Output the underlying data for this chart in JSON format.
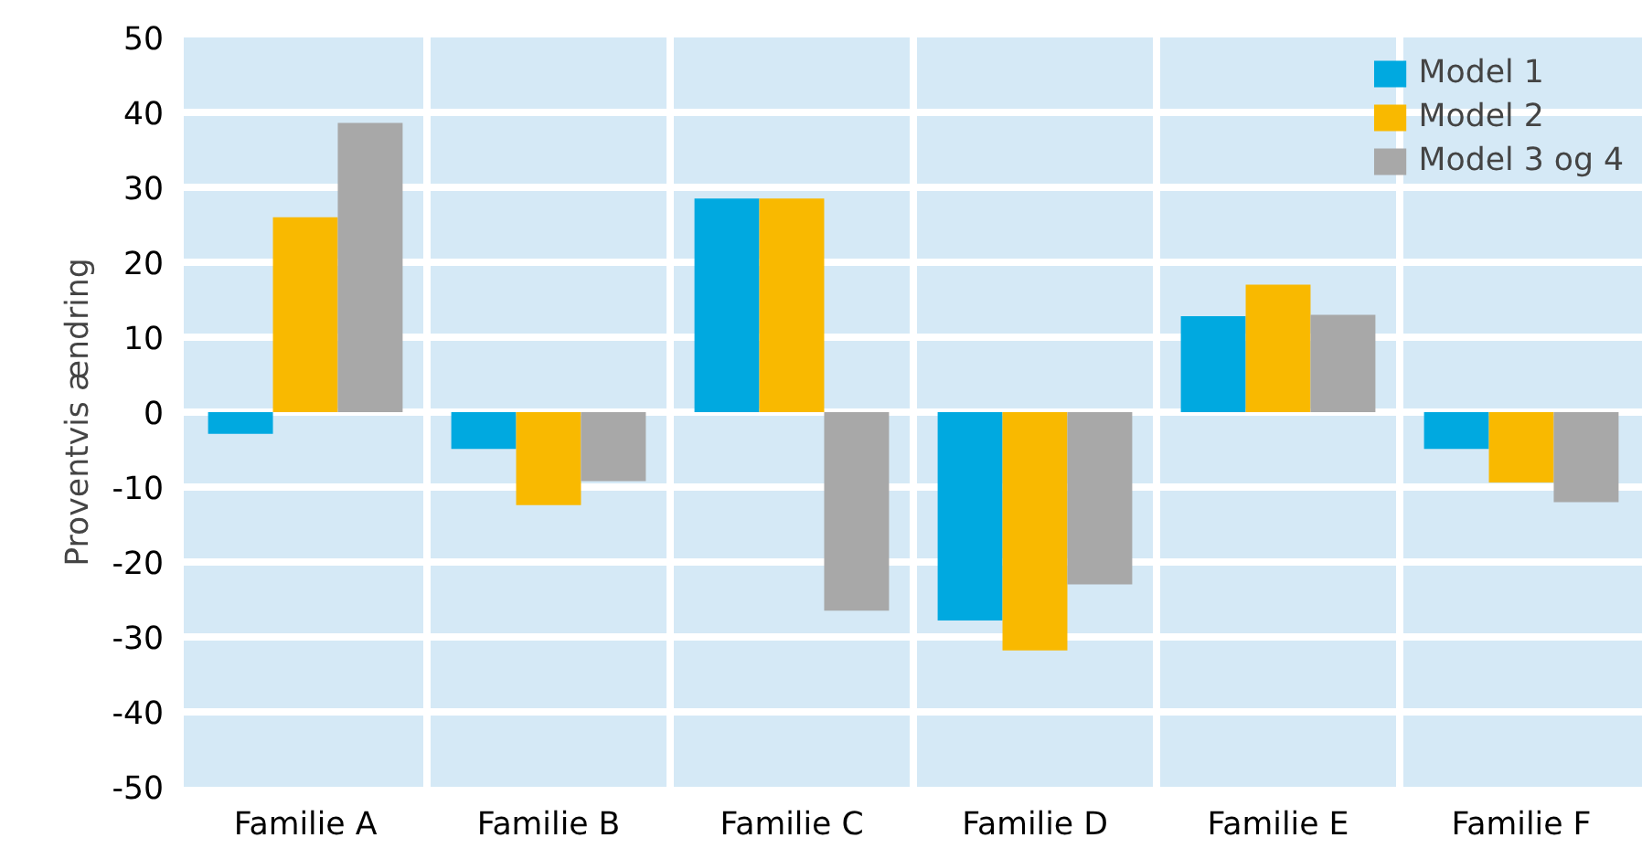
{
  "chart_data": {
    "type": "bar",
    "ylabel": "Proventvis ændring",
    "categories": [
      "Familie A",
      "Familie B",
      "Familie C",
      "Familie D",
      "Familie E",
      "Familie F"
    ],
    "series": [
      {
        "name": "Model 1",
        "color": "#00a9e0",
        "values": [
          -2.9,
          -4.9,
          28.5,
          -27.8,
          12.8,
          -4.9
        ]
      },
      {
        "name": "Model 2",
        "color": "#f9b900",
        "values": [
          26,
          -12.4,
          28.5,
          -31.8,
          17,
          -9.4
        ]
      },
      {
        "name": "Model 3 og 4",
        "color": "#a8a8a8",
        "values": [
          38.6,
          -9.2,
          -26.5,
          -23,
          13,
          -12
        ]
      }
    ],
    "ylim": [
      -50,
      50
    ],
    "yticks": [
      -50,
      -40,
      -30,
      -20,
      -10,
      0,
      10,
      20,
      30,
      40,
      50
    ],
    "grid": true,
    "legend": "top right"
  }
}
